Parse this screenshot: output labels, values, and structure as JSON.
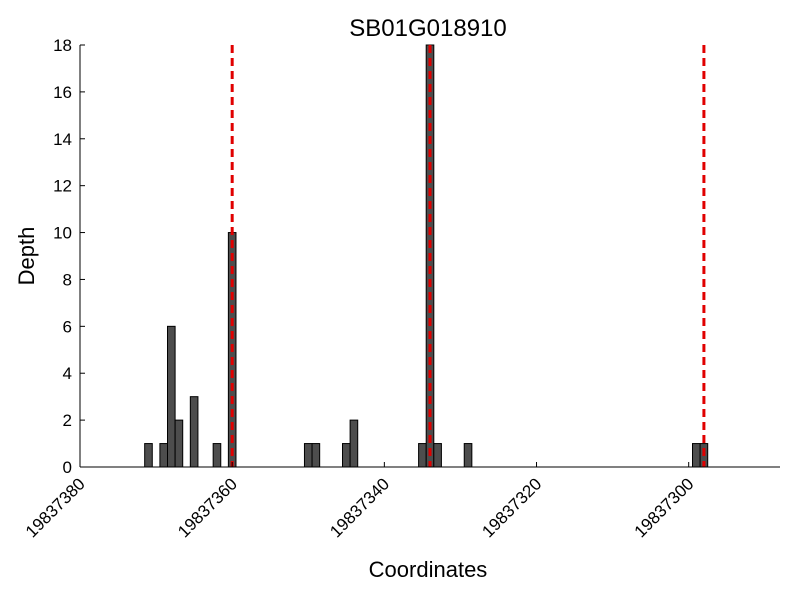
{
  "chart_data": {
    "type": "bar",
    "title": "SB01G018910",
    "xlabel": "Coordinates",
    "ylabel": "Depth",
    "xlim": [
      19837380,
      19837288
    ],
    "x_reversed": true,
    "ylim": [
      0,
      18
    ],
    "xticks": [
      "19837380",
      "19837360",
      "19837340",
      "19837320",
      "19837300"
    ],
    "yticks": [
      "0",
      "2",
      "4",
      "6",
      "8",
      "10",
      "12",
      "14",
      "16",
      "18"
    ],
    "grid": false,
    "bar_color": "#4d4d4d",
    "line_color": "#e00000",
    "x": [
      19837371,
      19837369,
      19837368,
      19837367,
      19837365,
      19837362,
      19837360,
      19837350,
      19837349,
      19837345,
      19837344,
      19837335,
      19837334,
      19837333,
      19837329,
      19837299,
      19837298
    ],
    "values": [
      1,
      1,
      6,
      2,
      3,
      1,
      10,
      1,
      1,
      1,
      2,
      1,
      18,
      1,
      1,
      1,
      1
    ],
    "vlines": [
      19837360,
      19837334,
      19837298
    ]
  }
}
